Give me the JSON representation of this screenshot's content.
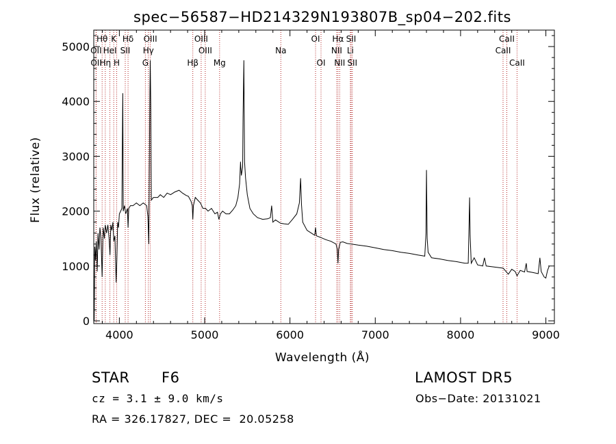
{
  "chart_data": {
    "type": "line",
    "title": "spec−56587−HD214329N193807B_sp04−202.fits",
    "xlabel": "Wavelength (Å)",
    "ylabel": "Flux (relative)",
    "xlim": [
      3700,
      9100
    ],
    "ylim": [
      -50,
      5300
    ],
    "xticks": [
      4000,
      5000,
      6000,
      7000,
      8000,
      9000
    ],
    "yticks": [
      0,
      1000,
      2000,
      3000,
      4000,
      5000
    ],
    "grid": false,
    "line_color": "#000000",
    "marker_color": "#b22222",
    "series": [
      {
        "points": [
          [
            3705,
            0
          ],
          [
            3712,
            1350
          ],
          [
            3720,
            1100
          ],
          [
            3730,
            1450
          ],
          [
            3740,
            900
          ],
          [
            3750,
            1600
          ],
          [
            3762,
            1300
          ],
          [
            3772,
            1700
          ],
          [
            3785,
            1500
          ],
          [
            3798,
            800
          ],
          [
            3810,
            1700
          ],
          [
            3825,
            1500
          ],
          [
            3835,
            1750
          ],
          [
            3850,
            1600
          ],
          [
            3865,
            1750
          ],
          [
            3880,
            1500
          ],
          [
            3890,
            1200
          ],
          [
            3900,
            1750
          ],
          [
            3912,
            1650
          ],
          [
            3925,
            1800
          ],
          [
            3935,
            1450
          ],
          [
            3948,
            1550
          ],
          [
            3962,
            700
          ],
          [
            3970,
            1100
          ],
          [
            3980,
            1800
          ],
          [
            3990,
            1700
          ],
          [
            4000,
            1950
          ],
          [
            4015,
            2000
          ],
          [
            4030,
            2050
          ],
          [
            4035,
            3300
          ],
          [
            4040,
            4150
          ],
          [
            4046,
            2000
          ],
          [
            4060,
            2100
          ],
          [
            4075,
            1950
          ],
          [
            4095,
            2050
          ],
          [
            4102,
            1700
          ],
          [
            4110,
            2050
          ],
          [
            4130,
            2100
          ],
          [
            4160,
            2100
          ],
          [
            4200,
            2150
          ],
          [
            4240,
            2100
          ],
          [
            4280,
            2150
          ],
          [
            4320,
            2100
          ],
          [
            4335,
            1900
          ],
          [
            4345,
            1400
          ],
          [
            4355,
            3600
          ],
          [
            4362,
            4750
          ],
          [
            4368,
            3900
          ],
          [
            4375,
            2200
          ],
          [
            4400,
            2250
          ],
          [
            4450,
            2250
          ],
          [
            4480,
            2300
          ],
          [
            4520,
            2250
          ],
          [
            4560,
            2330
          ],
          [
            4600,
            2300
          ],
          [
            4650,
            2350
          ],
          [
            4700,
            2380
          ],
          [
            4740,
            2330
          ],
          [
            4780,
            2290
          ],
          [
            4810,
            2270
          ],
          [
            4840,
            2180
          ],
          [
            4855,
            2100
          ],
          [
            4861,
            1850
          ],
          [
            4868,
            2100
          ],
          [
            4890,
            2250
          ],
          [
            4920,
            2200
          ],
          [
            4950,
            2150
          ],
          [
            4980,
            2050
          ],
          [
            5010,
            2050
          ],
          [
            5040,
            2000
          ],
          [
            5080,
            2050
          ],
          [
            5120,
            1950
          ],
          [
            5150,
            1980
          ],
          [
            5167,
            1850
          ],
          [
            5185,
            1950
          ],
          [
            5210,
            2000
          ],
          [
            5250,
            1950
          ],
          [
            5290,
            1950
          ],
          [
            5330,
            2020
          ],
          [
            5365,
            2100
          ],
          [
            5390,
            2250
          ],
          [
            5410,
            2500
          ],
          [
            5420,
            2900
          ],
          [
            5430,
            2650
          ],
          [
            5445,
            2800
          ],
          [
            5450,
            3700
          ],
          [
            5460,
            4750
          ],
          [
            5468,
            2900
          ],
          [
            5480,
            2600
          ],
          [
            5500,
            2300
          ],
          [
            5530,
            2050
          ],
          [
            5570,
            1950
          ],
          [
            5620,
            1880
          ],
          [
            5680,
            1850
          ],
          [
            5740,
            1860
          ],
          [
            5770,
            1880
          ],
          [
            5785,
            2100
          ],
          [
            5800,
            1800
          ],
          [
            5830,
            1840
          ],
          [
            5890,
            1780
          ],
          [
            5930,
            1770
          ],
          [
            5980,
            1760
          ],
          [
            6030,
            1850
          ],
          [
            6080,
            1950
          ],
          [
            6110,
            2150
          ],
          [
            6125,
            2600
          ],
          [
            6135,
            2120
          ],
          [
            6150,
            1800
          ],
          [
            6200,
            1650
          ],
          [
            6250,
            1600
          ],
          [
            6290,
            1560
          ],
          [
            6300,
            1700
          ],
          [
            6310,
            1550
          ],
          [
            6360,
            1520
          ],
          [
            6420,
            1480
          ],
          [
            6480,
            1450
          ],
          [
            6540,
            1400
          ],
          [
            6555,
            1300
          ],
          [
            6563,
            1050
          ],
          [
            6570,
            1300
          ],
          [
            6590,
            1430
          ],
          [
            6620,
            1440
          ],
          [
            6670,
            1410
          ],
          [
            6720,
            1400
          ],
          [
            6800,
            1380
          ],
          [
            6900,
            1360
          ],
          [
            7000,
            1330
          ],
          [
            7100,
            1300
          ],
          [
            7200,
            1280
          ],
          [
            7300,
            1250
          ],
          [
            7400,
            1230
          ],
          [
            7500,
            1200
          ],
          [
            7580,
            1180
          ],
          [
            7595,
            1600
          ],
          [
            7600,
            2750
          ],
          [
            7608,
            1500
          ],
          [
            7620,
            1250
          ],
          [
            7660,
            1150
          ],
          [
            7750,
            1130
          ],
          [
            7850,
            1100
          ],
          [
            7950,
            1080
          ],
          [
            8050,
            1050
          ],
          [
            8090,
            1050
          ],
          [
            8100,
            1800
          ],
          [
            8106,
            2250
          ],
          [
            8112,
            1550
          ],
          [
            8125,
            1050
          ],
          [
            8160,
            1150
          ],
          [
            8200,
            1020
          ],
          [
            8260,
            1000
          ],
          [
            8280,
            1150
          ],
          [
            8300,
            1000
          ],
          [
            8400,
            980
          ],
          [
            8500,
            960
          ],
          [
            8560,
            850
          ],
          [
            8600,
            940
          ],
          [
            8640,
            900
          ],
          [
            8662,
            820
          ],
          [
            8700,
            920
          ],
          [
            8750,
            890
          ],
          [
            8770,
            1050
          ],
          [
            8780,
            900
          ],
          [
            8850,
            880
          ],
          [
            8910,
            860
          ],
          [
            8930,
            1150
          ],
          [
            8945,
            900
          ],
          [
            8980,
            800
          ],
          [
            9000,
            780
          ],
          [
            9020,
            920
          ],
          [
            9040,
            1000
          ]
        ]
      }
    ],
    "lines": [
      {
        "label": "Hθ",
        "x": 3798,
        "row": 0
      },
      {
        "label": "K",
        "x": 3934,
        "row": 0
      },
      {
        "label": "Hδ",
        "x": 4102,
        "row": 0
      },
      {
        "label": "OIII",
        "x": 4363,
        "row": 0
      },
      {
        "label": "OIII",
        "x": 4959,
        "row": 0
      },
      {
        "label": "OI",
        "x": 6300,
        "row": 0
      },
      {
        "label": "Hα",
        "x": 6563,
        "row": 0
      },
      {
        "label": "SII",
        "x": 6717,
        "row": 0
      },
      {
        "label": "CaII",
        "x": 8542,
        "row": 0
      },
      {
        "label": "OII",
        "x": 3727,
        "row": 1
      },
      {
        "label": "HeI",
        "x": 3889,
        "row": 1
      },
      {
        "label": "SII",
        "x": 4069,
        "row": 1
      },
      {
        "label": "Hγ",
        "x": 4340,
        "row": 1
      },
      {
        "label": "OIII",
        "x": 5007,
        "row": 1
      },
      {
        "label": "Na",
        "x": 5893,
        "row": 1
      },
      {
        "label": "NII",
        "x": 6548,
        "row": 1
      },
      {
        "label": "Li",
        "x": 6708,
        "row": 1
      },
      {
        "label": "CaII",
        "x": 8498,
        "row": 1
      },
      {
        "label": "OII",
        "x": 3729,
        "row": 2
      },
      {
        "label": "Hη",
        "x": 3835,
        "row": 2
      },
      {
        "label": "H",
        "x": 3969,
        "row": 2
      },
      {
        "label": "G",
        "x": 4305,
        "row": 2
      },
      {
        "label": "Hβ",
        "x": 4861,
        "row": 2
      },
      {
        "label": "Mg",
        "x": 5175,
        "row": 2
      },
      {
        "label": "OI",
        "x": 6364,
        "row": 2
      },
      {
        "label": "NII",
        "x": 6583,
        "row": 2
      },
      {
        "label": "SII",
        "x": 6731,
        "row": 2
      },
      {
        "label": "CaII",
        "x": 8662,
        "row": 2
      }
    ]
  },
  "info": {
    "class_label": "STAR",
    "subclass": "F6",
    "survey": "LAMOST DR5",
    "cz": "cz = 3.1 ± 9.0 km/s",
    "obs_date": "Obs−Date: 20131021",
    "coords": "RA = 326.17827, DEC =  20.05258"
  }
}
